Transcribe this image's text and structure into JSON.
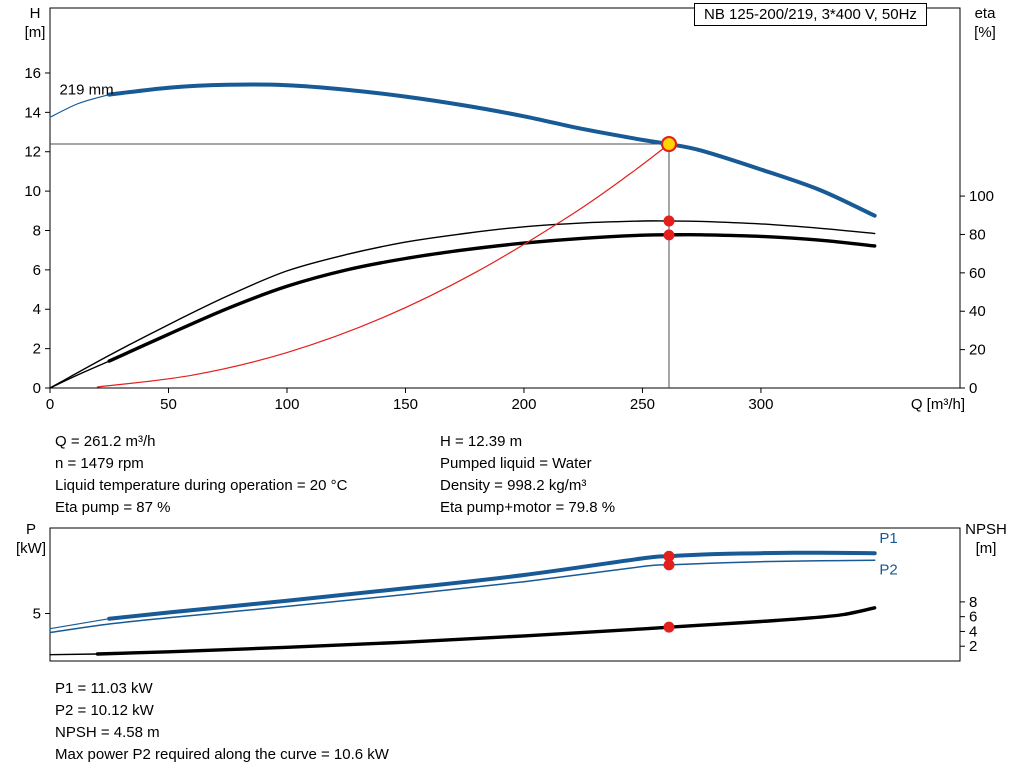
{
  "title_box": "NB 125-200/219, 3*400 V, 50Hz",
  "colors": {
    "blue": "#175a96",
    "red": "#e3201d",
    "yellow": "#ffd500",
    "black": "#000000",
    "guide": "#4d4d4d"
  },
  "info_left": [
    "Q = 261.2 m³/h",
    "n = 1479 rpm",
    "Liquid temperature during operation = 20 °C",
    "Eta pump = 87 %"
  ],
  "info_right": [
    "H = 12.39 m",
    "Pumped liquid = Water",
    "Density = 998.2 kg/m³",
    "Eta pump+motor = 79.8 %"
  ],
  "results": [
    "P1 = 11.03 kW",
    "P2 = 10.12 kW",
    "NPSH = 4.58 m",
    "Max power P2 required along the curve = 10.6 kW"
  ],
  "chart_data": [
    {
      "type": "line",
      "title": "NB 125-200/219, 3*400 V, 50Hz",
      "xlabel": "Q [m³/h]",
      "ylabel_left": "H\n[m]",
      "ylabel_right": "eta\n[%]",
      "xlim": [
        0,
        384
      ],
      "ylim_left": [
        0,
        19.3
      ],
      "ylim_right": [
        0,
        198
      ],
      "x_ticks": [
        0,
        50,
        100,
        150,
        200,
        250,
        300
      ],
      "y_ticks_left": [
        0,
        2,
        4,
        6,
        8,
        10,
        12,
        14,
        16
      ],
      "y_ticks_right": [
        0,
        20,
        40,
        60,
        80,
        100
      ],
      "duty_point": {
        "Q_m3h": 261.2,
        "H_m": 12.39,
        "eta_pump_pct": 87,
        "eta_pump_motor_pct": 79.8
      },
      "guides": [
        {
          "type": "v",
          "x": 261.2,
          "y0": 0,
          "y1": 12.39,
          "axis": "left"
        },
        {
          "type": "h",
          "y": 12.39,
          "x0": 0,
          "x1": 261.2,
          "axis": "left"
        }
      ],
      "series": [
        {
          "name": "hq-leadin",
          "axis": "left",
          "color": "blue",
          "width": 1.2,
          "x": [
            0,
            12,
            25
          ],
          "y": [
            13.75,
            14.45,
            14.9
          ]
        },
        {
          "name": "hq-219mm",
          "axis": "left",
          "color": "blue",
          "width": 4,
          "x": [
            25,
            50,
            75,
            100,
            125,
            150,
            175,
            200,
            225,
            250,
            261.2,
            275,
            300,
            325,
            348
          ],
          "y": [
            14.9,
            15.25,
            15.4,
            15.38,
            15.15,
            14.8,
            14.35,
            13.8,
            13.15,
            12.6,
            12.39,
            12.05,
            11.1,
            10.05,
            8.75
          ]
        },
        {
          "name": "eta-pump",
          "axis": "right",
          "color": "black",
          "width": 1.4,
          "x": [
            0,
            25,
            50,
            75,
            100,
            125,
            150,
            175,
            200,
            225,
            250,
            261.2,
            275,
            300,
            325,
            348
          ],
          "y": [
            0,
            17,
            33,
            48,
            61,
            69.5,
            76,
            80.5,
            84,
            86,
            87,
            87,
            86.8,
            85.5,
            83.2,
            80.5
          ]
        },
        {
          "name": "eta-pump-motor-leadin",
          "axis": "right",
          "color": "black",
          "width": 1.4,
          "x": [
            0,
            12,
            25
          ],
          "y": [
            0,
            7,
            14
          ]
        },
        {
          "name": "eta-pump-motor",
          "axis": "right",
          "color": "black",
          "width": 3.4,
          "x": [
            25,
            50,
            75,
            100,
            125,
            150,
            175,
            200,
            225,
            250,
            261.2,
            275,
            300,
            325,
            348
          ],
          "y": [
            14,
            28,
            41.5,
            53,
            61.5,
            67.5,
            72,
            75.5,
            78,
            79.6,
            79.8,
            79.8,
            79,
            77,
            74
          ]
        },
        {
          "name": "system-curve",
          "axis": "left",
          "color": "red",
          "width": 1.2,
          "x": [
            20,
            60,
            100,
            140,
            180,
            220,
            245,
            261.2
          ],
          "y": [
            0.05,
            0.65,
            1.8,
            3.55,
            5.9,
            8.8,
            10.9,
            12.39
          ]
        }
      ],
      "markers": [
        {
          "name": "duty-point",
          "x": 261.2,
          "y": 12.39,
          "axis": "left",
          "fill": "yellow",
          "stroke": "red",
          "r": 7,
          "sw": 2.2
        },
        {
          "name": "eta-pump-point",
          "x": 261.2,
          "y": 87,
          "axis": "right",
          "fill": "red",
          "stroke": "red",
          "r": 5,
          "sw": 1
        },
        {
          "name": "eta-pump-motor-point",
          "x": 261.2,
          "y": 79.8,
          "axis": "right",
          "fill": "red",
          "stroke": "red",
          "r": 5,
          "sw": 1
        }
      ],
      "labels": [
        {
          "text": "219 mm",
          "x": 4,
          "y": 14.9,
          "axis": "left",
          "color": "black",
          "anchor": "start"
        }
      ]
    },
    {
      "type": "line",
      "title": "",
      "xlabel": "",
      "ylabel_left": "P\n[kW]",
      "ylabel_right": "NPSH\n[m]",
      "xlim": [
        0,
        384
      ],
      "ylim_left": [
        0,
        14
      ],
      "ylim_right": [
        0,
        18
      ],
      "x_ticks": [],
      "y_ticks_left": [
        5
      ],
      "y_ticks_right": [
        2,
        4,
        6,
        8
      ],
      "duty_point": {
        "Q_m3h": 261.2,
        "P1_kW": 11.03,
        "P2_kW": 10.12,
        "NPSH_m": 4.58
      },
      "guides": [],
      "series": [
        {
          "name": "p1-leadin",
          "axis": "left",
          "color": "blue",
          "width": 1.2,
          "x": [
            0,
            25
          ],
          "y": [
            3.4,
            4.45
          ]
        },
        {
          "name": "p1",
          "axis": "left",
          "color": "blue",
          "width": 4,
          "x": [
            25,
            50,
            100,
            150,
            200,
            250,
            261.2,
            280,
            300,
            325,
            348
          ],
          "y": [
            4.45,
            5.1,
            6.35,
            7.65,
            9.05,
            10.8,
            11.03,
            11.25,
            11.35,
            11.4,
            11.35
          ]
        },
        {
          "name": "p2",
          "axis": "left",
          "color": "blue",
          "width": 1.5,
          "x": [
            0,
            25,
            50,
            100,
            150,
            200,
            250,
            261.2,
            280,
            300,
            325,
            348
          ],
          "y": [
            3.0,
            3.9,
            4.55,
            5.75,
            7.0,
            8.35,
            9.95,
            10.12,
            10.3,
            10.45,
            10.55,
            10.6
          ]
        },
        {
          "name": "npsh-leadin",
          "axis": "right",
          "color": "black",
          "width": 1.4,
          "x": [
            0,
            20
          ],
          "y": [
            0.85,
            0.95
          ]
        },
        {
          "name": "npsh",
          "axis": "right",
          "color": "black",
          "width": 3.4,
          "x": [
            20,
            50,
            100,
            150,
            200,
            250,
            261.2,
            280,
            300,
            320,
            335,
            348
          ],
          "y": [
            0.95,
            1.25,
            1.85,
            2.55,
            3.4,
            4.35,
            4.58,
            4.95,
            5.35,
            5.8,
            6.3,
            7.2
          ]
        }
      ],
      "markers": [
        {
          "name": "p1-point",
          "x": 261.2,
          "y": 11.03,
          "axis": "left",
          "fill": "red",
          "stroke": "red",
          "r": 5,
          "sw": 1
        },
        {
          "name": "p2-point",
          "x": 261.2,
          "y": 10.12,
          "axis": "left",
          "fill": "red",
          "stroke": "red",
          "r": 5,
          "sw": 1
        },
        {
          "name": "npsh-point",
          "x": 261.2,
          "y": 4.58,
          "axis": "right",
          "fill": "red",
          "stroke": "red",
          "r": 5,
          "sw": 1
        }
      ],
      "labels": [
        {
          "text": "P1",
          "x": 350,
          "y": 12.4,
          "axis": "left",
          "color": "blue",
          "anchor": "start"
        },
        {
          "text": "P2",
          "x": 350,
          "y": 9.1,
          "axis": "left",
          "color": "blue",
          "anchor": "start"
        }
      ]
    }
  ]
}
